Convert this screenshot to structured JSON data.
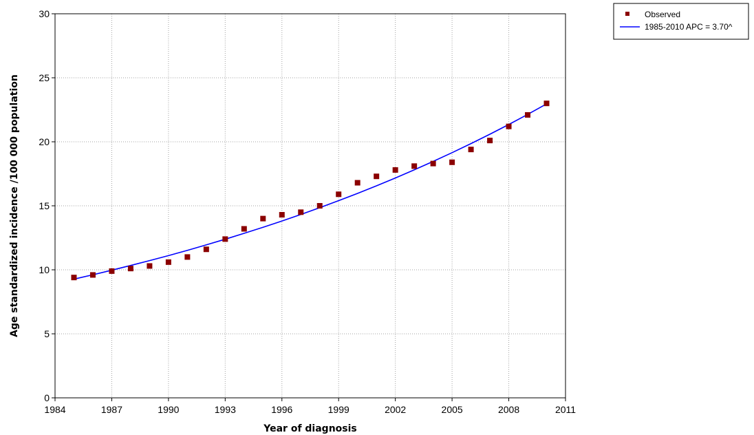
{
  "chart_data": {
    "type": "scatter",
    "title": "",
    "xlabel": "Year of diagnosis",
    "ylabel": "Age standardized incidence /100 000 population",
    "xlim": [
      1984,
      2011
    ],
    "ylim": [
      0,
      30
    ],
    "xticks": [
      1984,
      1987,
      1990,
      1993,
      1996,
      1999,
      2002,
      2005,
      2008,
      2011
    ],
    "yticks": [
      0,
      5,
      10,
      15,
      20,
      25,
      30
    ],
    "grid": true,
    "legend_position": "top-right",
    "series": [
      {
        "name": "Observed",
        "kind": "scatter",
        "marker": "square",
        "color": "#8b0000",
        "x": [
          1985,
          1986,
          1987,
          1988,
          1989,
          1990,
          1991,
          1992,
          1993,
          1994,
          1995,
          1996,
          1997,
          1998,
          1999,
          2000,
          2001,
          2002,
          2003,
          2004,
          2005,
          2006,
          2007,
          2008,
          2009,
          2010
        ],
        "y": [
          9.4,
          9.6,
          9.9,
          10.1,
          10.3,
          10.6,
          11.0,
          11.6,
          12.4,
          13.2,
          14.0,
          14.3,
          14.5,
          15.0,
          15.9,
          16.8,
          17.3,
          17.8,
          18.1,
          18.3,
          18.4,
          19.4,
          20.1,
          21.2,
          22.1,
          23.0
        ]
      },
      {
        "name": "1985-2010 APC  = 3.70^",
        "kind": "line",
        "color": "#0000ff",
        "x": [
          1985,
          1986,
          1987,
          1988,
          1989,
          1990,
          1991,
          1992,
          1993,
          1994,
          1995,
          1996,
          1997,
          1998,
          1999,
          2000,
          2001,
          2002,
          2003,
          2004,
          2005,
          2006,
          2007,
          2008,
          2009,
          2010
        ],
        "y": [
          9.27,
          9.61,
          9.97,
          10.34,
          10.72,
          11.11,
          11.52,
          11.95,
          12.39,
          12.85,
          13.32,
          13.81,
          14.32,
          14.85,
          15.4,
          15.97,
          16.56,
          17.17,
          17.81,
          18.47,
          19.15,
          19.86,
          20.59,
          21.35,
          22.14,
          22.96
        ]
      }
    ]
  }
}
